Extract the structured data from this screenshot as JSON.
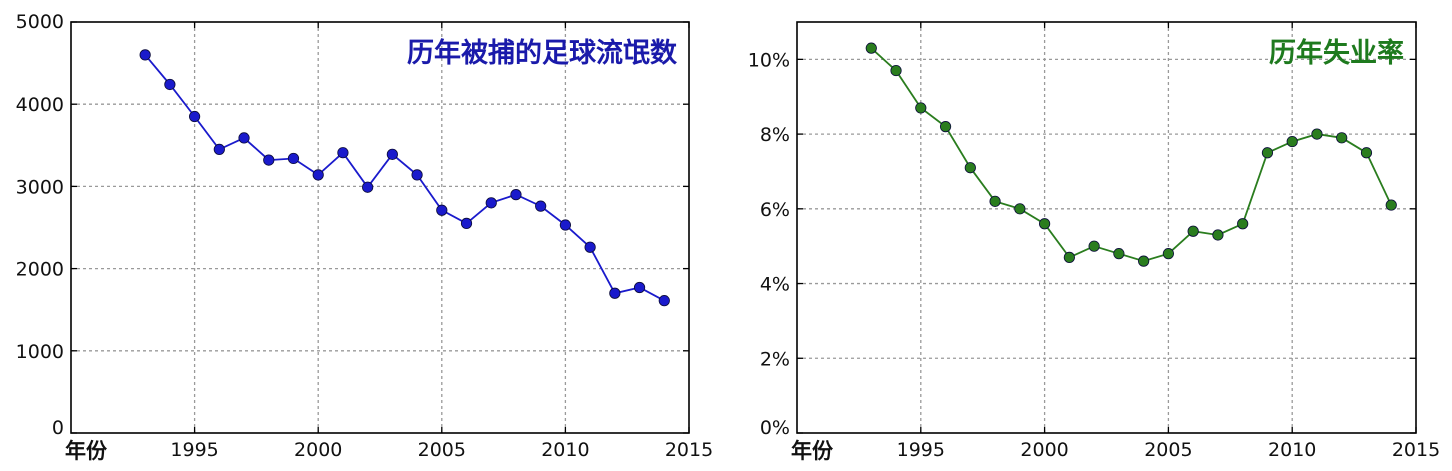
{
  "chart_data": [
    {
      "type": "line",
      "title": "历年被捕的足球流氓数",
      "xlabel": "年份",
      "ylabel": "",
      "xlim": [
        1990,
        2015
      ],
      "ylim": [
        0,
        5000
      ],
      "x_ticks": [
        1995,
        2000,
        2005,
        2010,
        2015
      ],
      "y_ticks": [
        0,
        1000,
        2000,
        3000,
        4000,
        5000
      ],
      "y_tick_labels": [
        "0",
        "1000",
        "2000",
        "3000",
        "4000",
        "5000"
      ],
      "grid": true,
      "color": "#1a1acc",
      "title_color": "#1a1aaa",
      "series": [
        {
          "x": [
            1993,
            1994,
            1995,
            1996,
            1997,
            1998,
            1999,
            2000,
            2001,
            2002,
            2003,
            2004,
            2005,
            2006,
            2007,
            2008,
            2009,
            2010,
            2011,
            2012,
            2013,
            2014
          ],
          "values": [
            4600,
            4240,
            3850,
            3450,
            3590,
            3320,
            3340,
            3140,
            3410,
            2990,
            3390,
            3140,
            2710,
            2550,
            2800,
            2900,
            2760,
            2530,
            2260,
            1700,
            1770,
            1610
          ]
        }
      ]
    },
    {
      "type": "line",
      "title": "历年失业率",
      "xlabel": "年份",
      "ylabel": "",
      "xlim": [
        1990,
        2015
      ],
      "ylim": [
        0,
        11
      ],
      "x_ticks": [
        1995,
        2000,
        2005,
        2010,
        2015
      ],
      "y_ticks": [
        0,
        2,
        4,
        6,
        8,
        10
      ],
      "y_tick_labels": [
        "0%",
        "2%",
        "4%",
        "6%",
        "8%",
        "10%"
      ],
      "grid": true,
      "color": "#2a7d1e",
      "title_color": "#1e7a1e",
      "series": [
        {
          "x": [
            1993,
            1994,
            1995,
            1996,
            1997,
            1998,
            1999,
            2000,
            2001,
            2002,
            2003,
            2004,
            2005,
            2006,
            2007,
            2008,
            2009,
            2010,
            2011,
            2012,
            2013,
            2014
          ],
          "values": [
            10.3,
            9.7,
            8.7,
            8.2,
            7.1,
            6.2,
            6.0,
            5.6,
            4.7,
            5.0,
            4.8,
            4.6,
            4.8,
            5.4,
            5.3,
            5.6,
            7.5,
            7.8,
            8.0,
            7.9,
            7.5,
            6.1
          ]
        }
      ]
    }
  ]
}
